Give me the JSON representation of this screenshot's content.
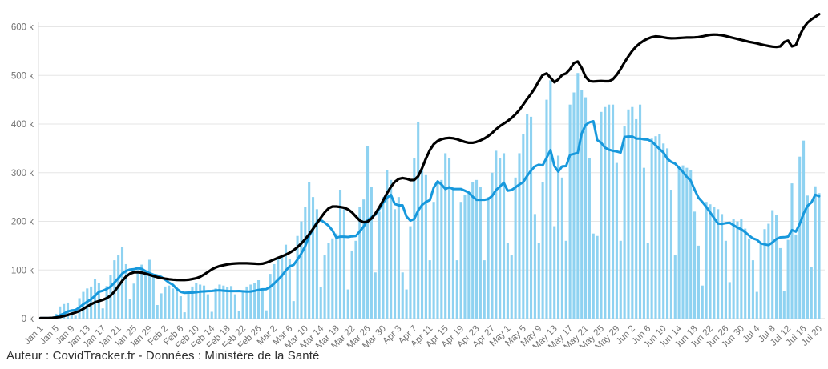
{
  "page": {
    "background": "#ffffff"
  },
  "footer": {
    "text": "Auteur : CovidTracker.fr - Données : Ministère de la Santé"
  },
  "chart_data": {
    "type": "bar",
    "title": "",
    "legend": "none",
    "grid": "horizontal",
    "colors": {
      "bar": "#8ed2f1",
      "avg_line": "#1798dc",
      "all_doses_line": "#000000",
      "grid_line": "#e6e6e6",
      "axis_line": "#d9d9d9",
      "tick_text": "#737373"
    },
    "y_axis": {
      "tick_labels": [
        "0 k",
        "100 k",
        "200 k",
        "300 k",
        "400 k",
        "500 k",
        "600 k"
      ],
      "tick_values_thousands": [
        0,
        100,
        200,
        300,
        400,
        500,
        600
      ],
      "min": 0,
      "max_visible_thousands": 645
    },
    "x_axis": {
      "start": "Jan 1",
      "end": "Jul 20",
      "tick_every_days": 4,
      "months": [
        {
          "name": "Jan",
          "days": 31
        },
        {
          "name": "Feb",
          "days": 28
        },
        {
          "name": "Mar",
          "days": 31
        },
        {
          "name": "Apr",
          "days": 30
        },
        {
          "name": "May",
          "days": 31
        },
        {
          "name": "Jun",
          "days": 30
        },
        {
          "name": "Jul",
          "days": 20
        }
      ],
      "tick_labels": [
        "Jan 1",
        "Jan 5",
        "Jan 9",
        "Jan 13",
        "Jan 17",
        "Jan 21",
        "Jan 25",
        "Jan 29",
        "Feb 2",
        "Feb 6",
        "Feb 10",
        "Feb 14",
        "Feb 18",
        "Feb 22",
        "Feb 26",
        "Mar 2",
        "Mar 6",
        "Mar 10",
        "Mar 14",
        "Mar 18",
        "Mar 22",
        "Mar 26",
        "Mar 30",
        "Apr 3",
        "Apr 7",
        "Apr 11",
        "Apr 15",
        "Apr 19",
        "Apr 23",
        "Apr 27",
        "May 1",
        "May 5",
        "May 9",
        "May 13",
        "May 17",
        "May 21",
        "May 25",
        "May 29",
        "Jun 2",
        "Jun 6",
        "Jun 10",
        "Jun 14",
        "Jun 18",
        "Jun 22",
        "Jun 26",
        "Jun 30",
        "Jul 4",
        "Jul 8",
        "Jul 12",
        "Jul 16",
        "Jul 20"
      ]
    },
    "series": [
      {
        "name": "daily-injections-bars",
        "type": "bar",
        "unit": "thousands",
        "values_thousands": [
          1,
          1,
          1,
          3,
          10,
          25,
          30,
          33,
          15,
          6,
          42,
          55,
          62,
          66,
          81,
          74,
          21,
          67,
          89,
          120,
          130,
          148,
          112,
          40,
          72,
          104,
          111,
          95,
          121,
          89,
          28,
          52,
          66,
          68,
          62,
          64,
          46,
          13,
          55,
          66,
          74,
          70,
          68,
          50,
          14,
          62,
          70,
          68,
          65,
          67,
          50,
          15,
          58,
          66,
          70,
          74,
          79,
          60,
          17,
          92,
          112,
          126,
          132,
          152,
          122,
          36,
          170,
          200,
          230,
          280,
          250,
          225,
          65,
          130,
          155,
          165,
          175,
          265,
          225,
          60,
          140,
          160,
          230,
          245,
          355,
          270,
          95,
          220,
          250,
          305,
          285,
          225,
          250,
          95,
          60,
          190,
          330,
          405,
          305,
          295,
          120,
          240,
          280,
          285,
          340,
          330,
          270,
          120,
          240,
          255,
          260,
          280,
          285,
          270,
          120,
          250,
          300,
          345,
          330,
          340,
          155,
          130,
          290,
          340,
          380,
          420,
          415,
          215,
          155,
          280,
          450,
          490,
          190,
          335,
          290,
          160,
          440,
          465,
          505,
          470,
          455,
          330,
          175,
          170,
          425,
          435,
          440,
          440,
          320,
          160,
          395,
          430,
          435,
          410,
          440,
          310,
          155,
          370,
          375,
          380,
          360,
          350,
          265,
          130,
          310,
          315,
          310,
          305,
          220,
          150,
          68,
          240,
          235,
          230,
          225,
          215,
          160,
          75,
          205,
          200,
          205,
          185,
          165,
          120,
          55,
          154,
          184,
          195,
          223,
          214,
          145,
          57,
          162,
          278,
          173,
          333,
          366,
          253,
          107,
          272,
          258
        ]
      },
      {
        "name": "moyenne-7-jours",
        "type": "line",
        "unit": "thousands",
        "derivation": "trailing 7-day mean of daily-injections-bars"
      },
      {
        "name": "moyenne-7-jours-toutes-doses",
        "type": "line",
        "unit": "thousands",
        "anchor_points_thousands": [
          [
            0,
            1
          ],
          [
            2,
            1
          ],
          [
            4,
            2
          ],
          [
            6,
            5
          ],
          [
            8,
            10
          ],
          [
            10,
            15
          ],
          [
            12,
            25
          ],
          [
            14,
            34
          ],
          [
            16,
            38
          ],
          [
            18,
            46
          ],
          [
            19,
            55
          ],
          [
            20,
            67
          ],
          [
            21,
            78
          ],
          [
            22,
            88
          ],
          [
            23,
            93
          ],
          [
            24,
            96
          ],
          [
            26,
            95
          ],
          [
            28,
            90
          ],
          [
            30,
            85
          ],
          [
            32,
            82
          ],
          [
            34,
            80
          ],
          [
            37,
            79
          ],
          [
            39,
            81
          ],
          [
            41,
            85
          ],
          [
            43,
            96
          ],
          [
            45,
            106
          ],
          [
            47,
            110
          ],
          [
            49,
            113
          ],
          [
            52,
            114
          ],
          [
            55,
            113
          ],
          [
            57,
            112
          ],
          [
            59,
            118
          ],
          [
            61,
            125
          ],
          [
            63,
            131
          ],
          [
            65,
            140
          ],
          [
            67,
            154
          ],
          [
            69,
            173
          ],
          [
            71,
            196
          ],
          [
            73,
            219
          ],
          [
            74,
            228
          ],
          [
            75,
            232
          ],
          [
            76,
            230
          ],
          [
            78,
            229
          ],
          [
            80,
            220
          ],
          [
            82,
            200
          ],
          [
            83,
            197
          ],
          [
            84,
            198
          ],
          [
            85,
            205
          ],
          [
            86,
            215
          ],
          [
            87,
            228
          ],
          [
            88,
            243
          ],
          [
            89,
            258
          ],
          [
            90,
            272
          ],
          [
            91,
            282
          ],
          [
            92,
            288
          ],
          [
            93,
            290
          ],
          [
            94,
            288
          ],
          [
            95,
            284
          ],
          [
            96,
            283
          ],
          [
            97,
            290
          ],
          [
            98,
            308
          ],
          [
            99,
            330
          ],
          [
            100,
            348
          ],
          [
            101,
            360
          ],
          [
            102,
            366
          ],
          [
            103,
            369
          ],
          [
            104,
            371
          ],
          [
            105,
            372
          ],
          [
            106,
            371
          ],
          [
            107,
            369
          ],
          [
            108,
            366
          ],
          [
            109,
            363
          ],
          [
            110,
            361
          ],
          [
            111,
            361
          ],
          [
            112,
            363
          ],
          [
            113,
            366
          ],
          [
            114,
            370
          ],
          [
            115,
            375
          ],
          [
            116,
            381
          ],
          [
            117,
            390
          ],
          [
            118,
            396
          ],
          [
            119,
            401
          ],
          [
            120,
            406
          ],
          [
            121,
            412
          ],
          [
            122,
            420
          ],
          [
            123,
            428
          ],
          [
            124,
            440
          ],
          [
            125,
            452
          ],
          [
            126,
            462
          ],
          [
            127,
            472
          ],
          [
            128,
            490
          ],
          [
            129,
            502
          ],
          [
            130,
            509
          ],
          [
            131,
            497
          ],
          [
            132,
            478
          ],
          [
            133,
            491
          ],
          [
            134,
            507
          ],
          [
            135,
            499
          ],
          [
            136,
            512
          ],
          [
            137,
            528
          ],
          [
            138,
            534
          ],
          [
            139,
            518
          ],
          [
            140,
            492
          ],
          [
            141,
            487
          ],
          [
            143,
            488
          ],
          [
            145,
            489
          ],
          [
            146,
            486
          ],
          [
            147,
            491
          ],
          [
            148,
            500
          ],
          [
            149,
            513
          ],
          [
            150,
            527
          ],
          [
            151,
            540
          ],
          [
            152,
            551
          ],
          [
            153,
            560
          ],
          [
            154,
            567
          ],
          [
            155,
            572
          ],
          [
            156,
            576
          ],
          [
            157,
            579
          ],
          [
            158,
            581
          ],
          [
            159,
            580
          ],
          [
            160,
            578
          ],
          [
            162,
            576
          ],
          [
            164,
            577
          ],
          [
            166,
            578
          ],
          [
            168,
            578
          ],
          [
            170,
            580
          ],
          [
            172,
            584
          ],
          [
            174,
            584
          ],
          [
            176,
            581
          ],
          [
            178,
            577
          ],
          [
            180,
            573
          ],
          [
            182,
            569
          ],
          [
            184,
            566
          ],
          [
            186,
            562
          ],
          [
            188,
            559
          ],
          [
            190,
            558
          ],
          [
            191,
            564
          ],
          [
            192,
            589
          ],
          [
            193,
            545
          ],
          [
            194,
            560
          ],
          [
            195,
            584
          ],
          [
            196,
            600
          ],
          [
            197,
            609
          ],
          [
            198,
            616
          ],
          [
            199,
            620
          ],
          [
            200,
            626
          ]
        ]
      }
    ]
  }
}
